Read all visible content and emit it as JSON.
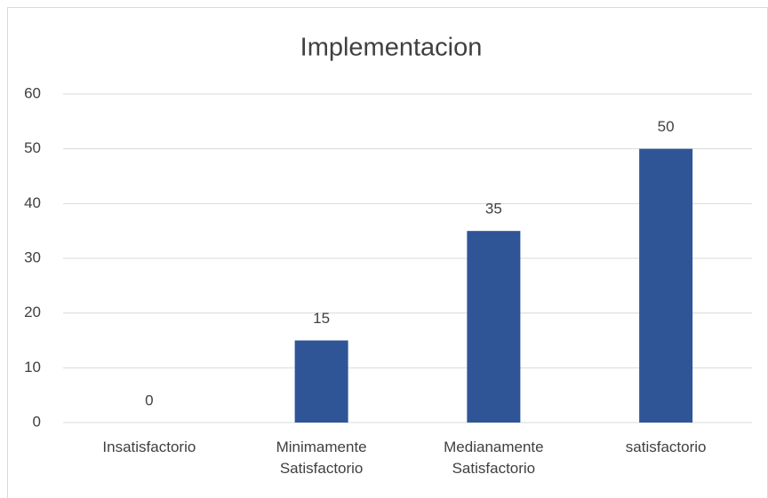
{
  "chart_data": {
    "type": "bar",
    "title": "Implementacion",
    "categories": [
      "Insatisfactorio",
      "Minimamente Satisfactorio",
      "Medianamente Satisfactorio",
      "satisfactorio"
    ],
    "values": [
      0,
      15,
      35,
      50
    ],
    "color": "#2f5597",
    "ylim": [
      0,
      60
    ],
    "yticks": [
      0,
      10,
      20,
      30,
      40,
      50,
      60
    ],
    "grid": true
  }
}
